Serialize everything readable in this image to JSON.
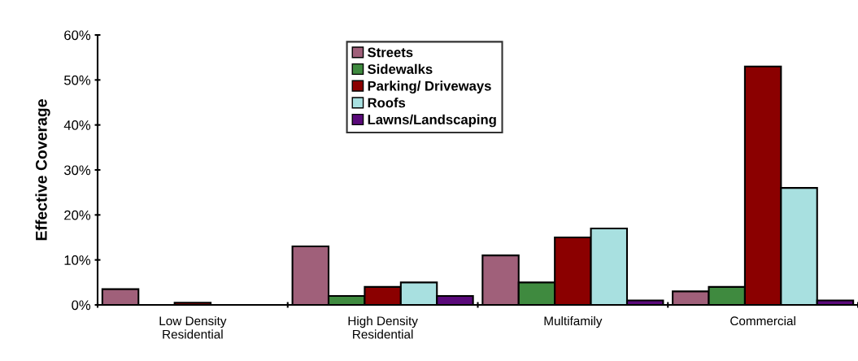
{
  "chart_data": {
    "type": "bar",
    "ylabel": "Effective Coverage",
    "categories": [
      "Low Density\nResidential",
      "High Density\nResidential",
      "Multifamily",
      "Commercial"
    ],
    "series": [
      {
        "name": "Streets",
        "color": "#a0607a",
        "values": [
          3.5,
          13,
          11,
          3
        ]
      },
      {
        "name": "Sidewalks",
        "color": "#3f8a3f",
        "values": [
          null,
          2,
          5,
          4
        ]
      },
      {
        "name": "Parking/ Driveways",
        "color": "#8b0000",
        "values": [
          0.5,
          4,
          15,
          53
        ]
      },
      {
        "name": "Roofs",
        "color": "#a8e0e0",
        "values": [
          null,
          5,
          17,
          26
        ]
      },
      {
        "name": "Lawns/Landscaping",
        "color": "#5a0a7a",
        "values": [
          null,
          2,
          1,
          1
        ]
      }
    ],
    "ylim": [
      0,
      60
    ],
    "yticks": [
      {
        "value": 0,
        "label": "0%"
      },
      {
        "value": 10,
        "label": "10%"
      },
      {
        "value": 20,
        "label": "20%"
      },
      {
        "value": 30,
        "label": "30%"
      },
      {
        "value": 40,
        "label": "40%"
      },
      {
        "value": 50,
        "label": "50%"
      },
      {
        "value": 60,
        "label": "60%"
      }
    ],
    "grid": false,
    "legend": "top"
  }
}
